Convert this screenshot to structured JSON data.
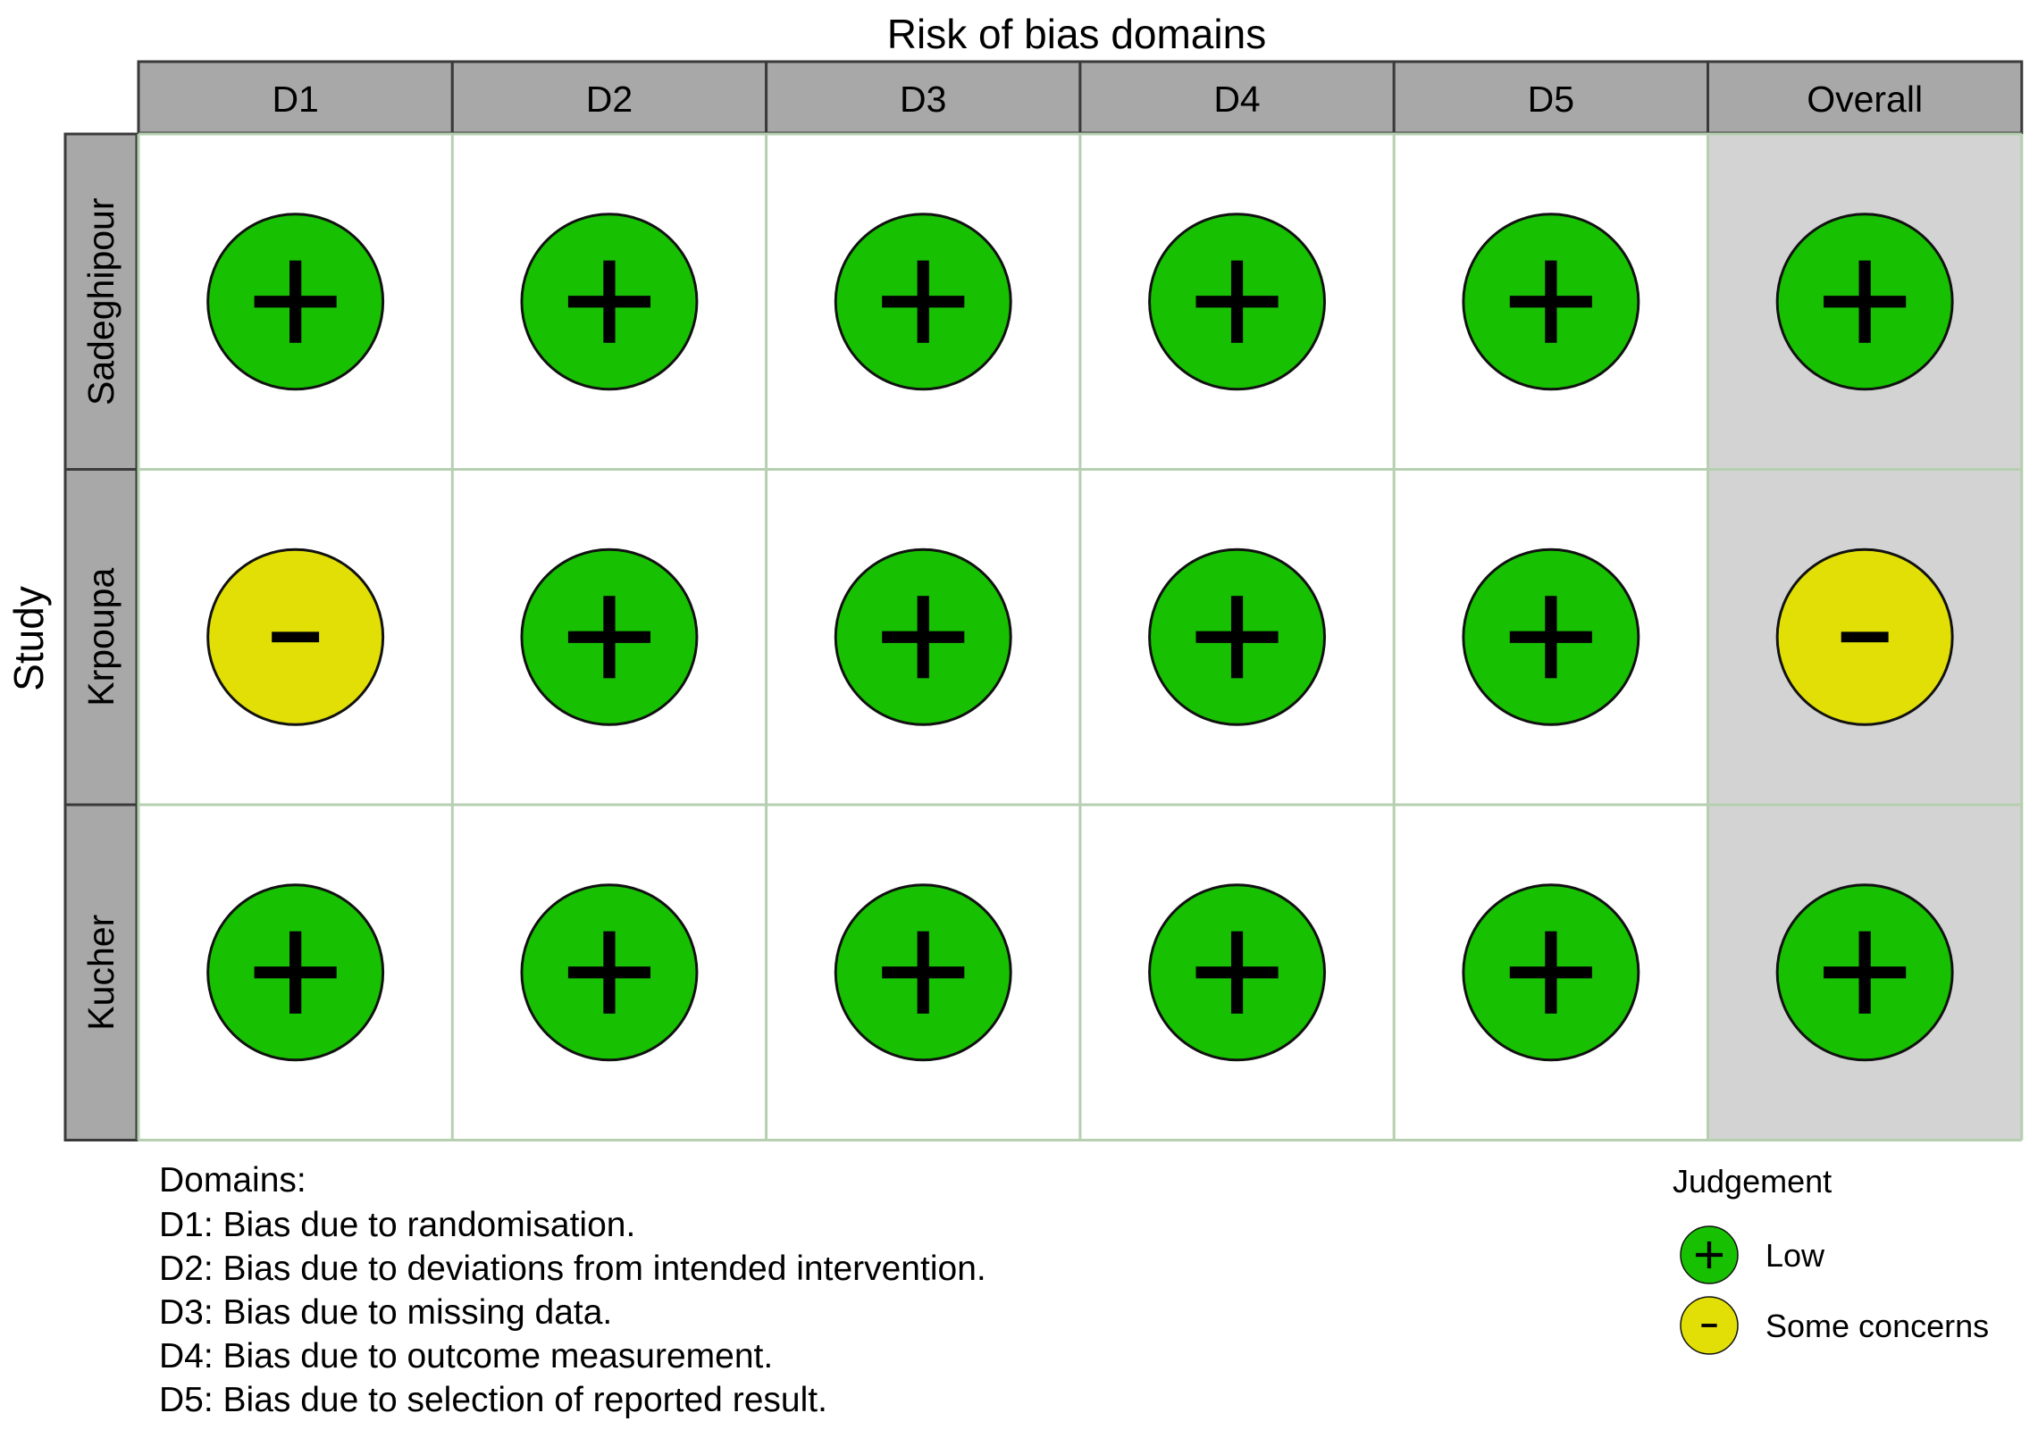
{
  "chart_data": {
    "type": "table",
    "title": "Risk of bias domains",
    "ylabel": "Study",
    "columns": [
      "D1",
      "D2",
      "D3",
      "D4",
      "D5",
      "Overall"
    ],
    "rows": [
      {
        "study": "Sadeghipour",
        "judgements": [
          "+",
          "+",
          "+",
          "+",
          "+",
          "+"
        ]
      },
      {
        "study": "Krpoupa",
        "judgements": [
          "-",
          "+",
          "+",
          "+",
          "+",
          "-"
        ]
      },
      {
        "study": "Kucher",
        "judgements": [
          "+",
          "+",
          "+",
          "+",
          "+",
          "+"
        ]
      }
    ],
    "domains_heading": "Domains:",
    "domains": [
      "D1: Bias due to randomisation.",
      "D2: Bias due to deviations from intended intervention.",
      "D3: Bias due to missing data.",
      "D4: Bias due to outcome measurement.",
      "D5: Bias due to selection of reported result."
    ],
    "legend": {
      "title": "Judgement",
      "items": [
        {
          "symbol": "+",
          "label": "Low",
          "color": "#17c000"
        },
        {
          "symbol": "-",
          "label": "Some concerns",
          "color": "#e2df07"
        }
      ]
    },
    "colors": {
      "low": "#17c000",
      "some_concerns": "#e2df07",
      "header_fill": "#a8a8a8",
      "overall_fill": "#d3d3d3",
      "grid_line": "#b5cfb0"
    }
  }
}
